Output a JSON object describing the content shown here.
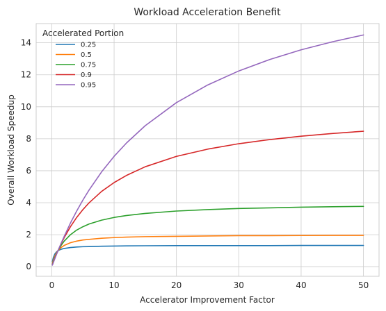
{
  "chart_data": {
    "type": "line",
    "title": "Workload Acceleration Benefit",
    "xlabel": "Accelerator Improvement Factor",
    "ylabel": "Overall Workload Speedup",
    "xlim": [
      -2.5,
      52.5
    ],
    "ylim": [
      -0.6,
      15.2
    ],
    "xticks": [
      0,
      10,
      20,
      30,
      40,
      50
    ],
    "yticks": [
      0,
      2,
      4,
      6,
      8,
      10,
      12,
      14
    ],
    "grid": true,
    "legend": {
      "title": "Accelerated Portion",
      "placement": "top-left"
    },
    "x": [
      0.1,
      0.25,
      0.5,
      0.75,
      1,
      1.5,
      2,
      3,
      4,
      5,
      6,
      8,
      10,
      12,
      15,
      20,
      25,
      30,
      35,
      40,
      45,
      50
    ],
    "series": [
      {
        "name": "0.25",
        "color": "#1f77b4",
        "values": [
          0.31,
          0.57,
          0.8,
          0.92,
          1.0,
          1.09,
          1.14,
          1.2,
          1.23,
          1.25,
          1.26,
          1.28,
          1.29,
          1.3,
          1.31,
          1.32,
          1.32,
          1.32,
          1.32,
          1.33,
          1.33,
          1.33
        ]
      },
      {
        "name": "0.5",
        "color": "#ff7f0e",
        "values": [
          0.18,
          0.4,
          0.67,
          0.86,
          1.0,
          1.2,
          1.33,
          1.5,
          1.6,
          1.67,
          1.71,
          1.78,
          1.82,
          1.85,
          1.88,
          1.9,
          1.92,
          1.94,
          1.94,
          1.95,
          1.96,
          1.96
        ]
      },
      {
        "name": "0.75",
        "color": "#2ca02c",
        "values": [
          0.13,
          0.31,
          0.57,
          0.8,
          1.0,
          1.33,
          1.6,
          2.0,
          2.29,
          2.5,
          2.67,
          2.91,
          3.08,
          3.2,
          3.33,
          3.48,
          3.57,
          3.64,
          3.68,
          3.72,
          3.75,
          3.77
        ]
      },
      {
        "name": "0.9",
        "color": "#d62728",
        "values": [
          0.11,
          0.27,
          0.53,
          0.77,
          1.0,
          1.43,
          1.82,
          2.5,
          3.08,
          3.57,
          4.0,
          4.71,
          5.26,
          5.71,
          6.25,
          6.9,
          7.35,
          7.69,
          7.95,
          8.16,
          8.33,
          8.47
        ]
      },
      {
        "name": "0.95",
        "color": "#9467bd",
        "values": [
          0.1,
          0.26,
          0.51,
          0.76,
          1.0,
          1.46,
          1.9,
          2.73,
          3.48,
          4.17,
          4.8,
          5.93,
          6.9,
          7.74,
          8.82,
          10.26,
          11.36,
          12.24,
          12.96,
          13.56,
          14.06,
          14.49
        ]
      }
    ]
  }
}
